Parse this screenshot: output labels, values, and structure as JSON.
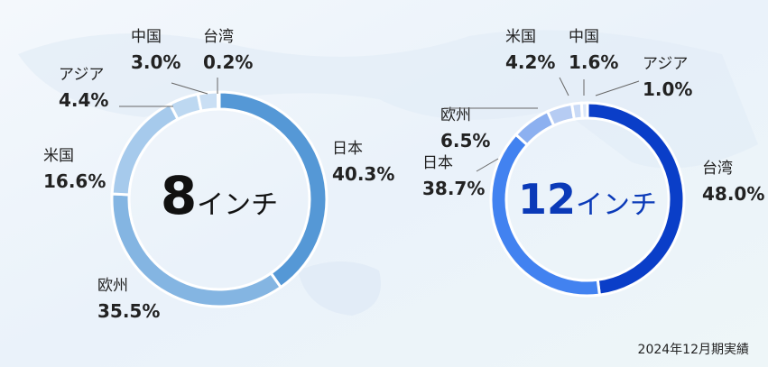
{
  "chart_data": [
    {
      "type": "pie",
      "center_label_number": "8",
      "center_label_unit": "インチ",
      "center_color": "#111111",
      "categories": [
        "日本",
        "欧州",
        "米国",
        "アジア",
        "中国",
        "台湾"
      ],
      "values": [
        40.3,
        35.5,
        16.6,
        4.4,
        3.0,
        0.2
      ],
      "value_labels": [
        "40.3%",
        "35.5%",
        "16.6%",
        "4.4%",
        "3.0%",
        "0.2%"
      ],
      "colors": [
        "#5598d6",
        "#84b5e2",
        "#a6caec",
        "#bdd8f1",
        "#cadff4",
        "#d8e8f8"
      ]
    },
    {
      "type": "pie",
      "center_label_number": "12",
      "center_label_unit": "インチ",
      "center_color": "#0b3ab8",
      "categories": [
        "台湾",
        "日本",
        "欧州",
        "米国",
        "中国",
        "アジア"
      ],
      "values": [
        48.0,
        38.7,
        6.5,
        4.2,
        1.6,
        1.0
      ],
      "value_labels": [
        "48.0%",
        "38.7%",
        "6.5%",
        "4.2%",
        "1.6%",
        "1.0%"
      ],
      "colors": [
        "#0a3ec8",
        "#4282f0",
        "#8cb0f0",
        "#b6ccf3",
        "#c9daf6",
        "#dbe7f9"
      ]
    }
  ],
  "note": "2024年12月期実績"
}
